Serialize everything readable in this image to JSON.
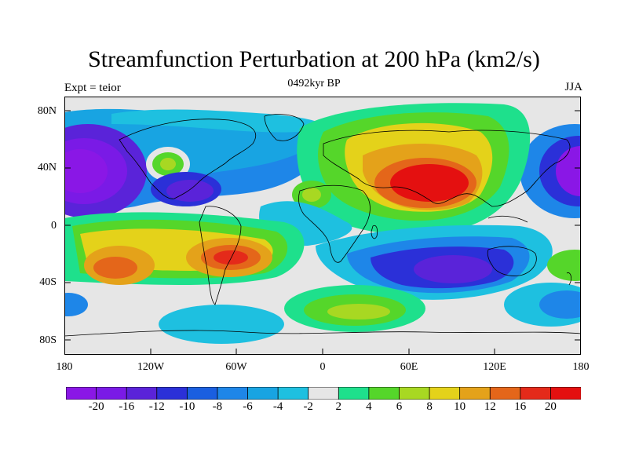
{
  "title": "Streamfunction Perturbation at 200 hPa (km2/s)",
  "subtitle_left": "Expt = teior",
  "subtitle_center": "0492kyr BP",
  "subtitle_right": "JJA",
  "map": {
    "projection": "cylindrical-equidistant",
    "lon_range": [
      -180,
      180
    ],
    "lat_range": [
      -90,
      90
    ],
    "background_color": "#e6e6e6",
    "coastline_color": "#000000",
    "lat_ticks": [
      "80N",
      "40N",
      "0",
      "40S",
      "80S"
    ],
    "lon_ticks": [
      "180",
      "120W",
      "60W",
      "0",
      "60E",
      "120E",
      "180"
    ],
    "features": [
      {
        "name": "Central Asia maximum",
        "lon": 75,
        "lat": 35,
        "value": 20
      },
      {
        "name": "North Atlantic ring",
        "lon": -115,
        "lat": 45,
        "value": 6
      },
      {
        "name": "South Pacific maximum",
        "lon": -70,
        "lat": -22,
        "value": 16
      },
      {
        "name": "SW Pacific maximum",
        "lon": -140,
        "lat": -30,
        "value": 12
      },
      {
        "name": "South Indian Ocean minimum",
        "lon": 95,
        "lat": -30,
        "value": -16
      },
      {
        "name": "Gulf of Mexico minimum",
        "lon": -85,
        "lat": 20,
        "value": -12
      },
      {
        "name": "Dateline NH minimum",
        "lon": -175,
        "lat": 35,
        "value": -20
      },
      {
        "name": "Dateline NH minimum east",
        "lon": 178,
        "lat": 35,
        "value": -20
      },
      {
        "name": "South Atlantic positive",
        "lon": 15,
        "lat": -55,
        "value": 8
      }
    ]
  },
  "colorbar": {
    "labels": [
      "-20",
      "-16",
      "-12",
      "-10",
      "-8",
      "-6",
      "-4",
      "-2",
      "2",
      "4",
      "6",
      "8",
      "10",
      "12",
      "16",
      "20"
    ],
    "colors": [
      "#8a17e6",
      "#7a1ae6",
      "#5a23d9",
      "#2b30d8",
      "#1a5fe0",
      "#1e86e8",
      "#18a4e2",
      "#1ec0e0",
      "#e6e6e6",
      "#1ee08c",
      "#55d62a",
      "#a8d822",
      "#e4d21a",
      "#e4a21a",
      "#e4661a",
      "#e42a1a",
      "#e41010"
    ]
  }
}
